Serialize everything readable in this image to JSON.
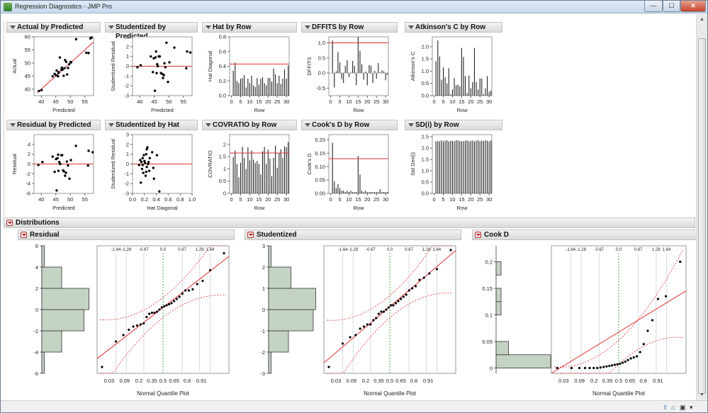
{
  "window": {
    "title": "Regression Diagnostics - JMP Pro",
    "minimize": "—",
    "maximize": "☐",
    "close": "✕"
  },
  "plots": [
    {
      "title": "Actual by Predicted",
      "ylabel": "Actual",
      "xlabel": "Predicted",
      "xt": [
        "40",
        "45",
        "50",
        "55"
      ],
      "yt": [
        "40",
        "45",
        "50",
        "55",
        "60"
      ]
    },
    {
      "title": "Studentized by Predicted",
      "ylabel": "Studentized Residual",
      "xlabel": "Predicted",
      "xt": [
        "40",
        "45",
        "50",
        "55"
      ],
      "yt": [
        "3",
        "2",
        "1",
        "0",
        "-1",
        "-2",
        "-3"
      ]
    },
    {
      "title": "Hat by Row",
      "ylabel": "Hat Diagonal",
      "xlabel": "Row",
      "xt": [
        "0",
        "5",
        "10",
        "15",
        "20",
        "25",
        "30"
      ],
      "yt": [
        "0.8",
        "0.6",
        "0.4",
        "0.2",
        "0.0"
      ]
    },
    {
      "title": "DFFITS by Row",
      "ylabel": "DFFITS",
      "xlabel": "Row",
      "xt": [
        "0",
        "5",
        "10",
        "15",
        "20",
        "25",
        "30"
      ],
      "yt": [
        "1.0",
        "0.5",
        "0.0",
        "-0.5"
      ]
    },
    {
      "title": "Atkinson's C by Row",
      "ylabel": "Atkinson's C",
      "xlabel": "Row",
      "xt": [
        "0",
        "5",
        "10",
        "15",
        "20",
        "25",
        "30"
      ],
      "yt": [
        "2.0",
        "1.5",
        "1.0",
        "0.5",
        "0.0"
      ]
    },
    {
      "title": "Residual by Predicted",
      "ylabel": "Residual",
      "xlabel": "Predicted",
      "xt": [
        "40",
        "45",
        "50",
        "55"
      ],
      "yt": [
        "4",
        "2",
        "0",
        "-2",
        "-4",
        "-6"
      ]
    },
    {
      "title": "Studentized by Hat",
      "ylabel": "Studentized Residual",
      "xlabel": "Hat Diagonal",
      "xt": [
        "0.0",
        "0.2",
        "0.4",
        "0.6",
        "0.8",
        "1.0"
      ],
      "yt": [
        "3",
        "2",
        "1",
        "0",
        "-1",
        "-2",
        "-3"
      ]
    },
    {
      "title": "COVRATIO by Row",
      "ylabel": "COVRATIO",
      "xlabel": "Row",
      "xt": [
        "0",
        "5",
        "10",
        "15",
        "20",
        "25",
        "30"
      ],
      "yt": [
        "2",
        "1.5",
        "1",
        "0.5",
        "0"
      ]
    },
    {
      "title": "Cook's D by Row",
      "ylabel": "Cook's D",
      "xlabel": "Row",
      "xt": [
        "0",
        "5",
        "10",
        "15",
        "20",
        "25",
        "30"
      ],
      "yt": [
        "0.20",
        "0.15",
        "0.10",
        "0.05",
        "0.00"
      ]
    },
    {
      "title": "SD(i) by Row",
      "ylabel": "Std Dev(i)",
      "xlabel": "Row",
      "xt": [
        "0",
        "5",
        "10",
        "15",
        "20",
        "25",
        "30"
      ],
      "yt": [
        "2.5",
        "2.0",
        "1.5",
        "1.0",
        "0.5",
        "0.0"
      ]
    }
  ],
  "distributions": {
    "title": "Distributions",
    "panels": [
      {
        "title": "Residual",
        "yt": [
          "6",
          "4",
          "2",
          "0",
          "-2",
          "-4",
          "-6"
        ]
      },
      {
        "title": "Studentized",
        "yt": [
          "3",
          "2",
          "1",
          "0",
          "-1",
          "-2",
          "-3"
        ]
      },
      {
        "title": "Cook D",
        "yt": [
          "0.2",
          "0.15",
          "0.1",
          "0.05",
          "0"
        ]
      }
    ],
    "top_quantiles": [
      "-1.64",
      "-1.28",
      "-0.67",
      "0.0",
      "0.67",
      "1.28",
      "1.64"
    ],
    "bottom_probs": [
      "0.03",
      "0.09",
      "0.2",
      "0.35",
      "0.5",
      "0.65",
      "0.8",
      "0.91"
    ],
    "qq_label": "Normal Quantile Plot"
  },
  "chart_data": [
    {
      "type": "scatter",
      "title": "Actual by Predicted",
      "xlabel": "Predicted",
      "ylabel": "Actual",
      "xlim": [
        37.5,
        58
      ],
      "ylim": [
        37.5,
        60
      ],
      "x": [
        39.2,
        40.1,
        43.9,
        44.6,
        45.1,
        45.3,
        45.8,
        45.9,
        46.0,
        46.4,
        46.9,
        47.1,
        47.3,
        47.7,
        48.0,
        48.2,
        48.6,
        48.9,
        49.2,
        49.6,
        50.1,
        50.3,
        52.0,
        55.5,
        56.3,
        56.9,
        57.3
      ],
      "y": [
        39.3,
        39.6,
        44.9,
        45.8,
        45.3,
        47.1,
        44.9,
        46.1,
        46.5,
        52.1,
        47.4,
        48.2,
        47.4,
        45.1,
        48.0,
        51.1,
        50.4,
        45.6,
        48.1,
        49.5,
        50.4,
        50.2,
        59.1,
        53.9,
        53.8,
        59.4,
        59.7
      ]
    },
    {
      "type": "scatter",
      "title": "Studentized by Predicted",
      "xlabel": "Predicted",
      "ylabel": "Studentized Residual",
      "xlim": [
        37.5,
        58
      ],
      "ylim": [
        -3,
        3
      ],
      "x": [
        39.2,
        40.3,
        43.8,
        44.5,
        44.8,
        45.2,
        45.4,
        45.6,
        45.8,
        46.0,
        46.2,
        46.5,
        46.9,
        47.3,
        47.8,
        48.0,
        48.3,
        48.5,
        48.8,
        49.2,
        49.7,
        50.2,
        51.9,
        56.0,
        56.3,
        57.4
      ],
      "y": [
        -0.1,
        0.1,
        1.0,
        -0.6,
        0.8,
        -2.5,
        0.9,
        1.5,
        -0.7,
        0.2,
        0.0,
        1.0,
        1.0,
        -0.7,
        -0.8,
        -1.2,
        -0.9,
        0.3,
        -0.1,
        2.4,
        -1.6,
        0.4,
        1.9,
        -0.2,
        1.5,
        1.4
      ]
    },
    {
      "type": "bar",
      "title": "Hat by Row",
      "xlabel": "Row",
      "ylabel": "Hat Diagonal",
      "ylim": [
        0,
        0.8
      ],
      "reference": 0.43,
      "values": [
        0.34,
        0.45,
        0.2,
        0.17,
        0.23,
        0.24,
        0.28,
        0.11,
        0.23,
        0.17,
        0.27,
        0.14,
        0.12,
        0.24,
        0.15,
        0.23,
        0.25,
        0.17,
        0.14,
        0.24,
        0.24,
        0.19,
        0.37,
        0.29,
        0.17,
        0.27,
        0.16,
        0.23,
        0.36,
        0.23,
        0.41
      ]
    },
    {
      "type": "bar",
      "title": "DFFITS by Row",
      "xlabel": "Row",
      "ylabel": "DFFITS",
      "ylim": [
        -0.75,
        1.2
      ],
      "reference": 1.0,
      "values": [
        1.08,
        -0.48,
        0.06,
        0.7,
        0.35,
        -0.2,
        -0.33,
        0.24,
        0.42,
        -0.14,
        0.02,
        0.4,
        0.24,
        -0.4,
        1.2,
        0.73,
        0.29,
        -0.22,
        0.05,
        -0.41,
        0.26,
        0.24,
        -0.33,
        0.07,
        -0.19,
        0.33,
        0.02,
        0.09,
        0.06,
        -0.24,
        -0.06
      ]
    },
    {
      "type": "bar",
      "title": "Atkinson's C by Row",
      "xlabel": "Row",
      "ylabel": "Atkinson's C",
      "ylim": [
        0,
        2.4
      ],
      "values": [
        1.4,
        2.25,
        1.6,
        0.65,
        1.15,
        0.75,
        0.5,
        1.12,
        0.05,
        0.25,
        0.72,
        0.42,
        0.45,
        0.38,
        1.95,
        1.58,
        0.8,
        0.1,
        0.82,
        0.3,
        0.55,
        1.95,
        0.55,
        0.25,
        0.7,
        0.7,
        0.05,
        0.3,
        0.8,
        0.15,
        0.2
      ]
    },
    {
      "type": "scatter",
      "title": "Residual by Predicted",
      "xlabel": "Predicted",
      "ylabel": "Residual",
      "xlim": [
        37.5,
        58
      ],
      "ylim": [
        -6,
        6
      ],
      "x": [
        39.0,
        40.4,
        43.9,
        44.6,
        45.1,
        45.3,
        45.6,
        45.8,
        45.9,
        46.2,
        46.5,
        46.9,
        47.2,
        47.5,
        47.8,
        48.2,
        48.5,
        48.8,
        49.2,
        49.7,
        50.2,
        51.9,
        56.1,
        56.3,
        57.7
      ],
      "y": [
        -0.2,
        0.4,
        1.5,
        -1.6,
        1.0,
        -5.4,
        1.2,
        1.9,
        -1.4,
        0.4,
        0.0,
        1.8,
        1.8,
        -1.3,
        -1.5,
        -2.4,
        -1.8,
        0.5,
        -0.3,
        -3.0,
        0.8,
        3.7,
        -0.3,
        2.7,
        2.4
      ]
    },
    {
      "type": "scatter",
      "title": "Studentized by Hat",
      "xlabel": "Hat Diagonal",
      "ylabel": "Studentized Residual",
      "xlim": [
        0,
        1.0
      ],
      "ylim": [
        -3,
        3
      ],
      "x": [
        0.11,
        0.13,
        0.14,
        0.15,
        0.16,
        0.17,
        0.17,
        0.18,
        0.19,
        0.2,
        0.21,
        0.22,
        0.23,
        0.23,
        0.24,
        0.24,
        0.25,
        0.26,
        0.27,
        0.28,
        0.29,
        0.33,
        0.35,
        0.36,
        0.41,
        0.45
      ],
      "y": [
        -0.1,
        0.4,
        -1.9,
        0.2,
        -0.5,
        -0.1,
        0.6,
        -0.9,
        0.9,
        0.3,
        0.1,
        -1.2,
        1.0,
        -0.8,
        1.5,
        -0.3,
        1.7,
        0.0,
        0.2,
        -0.7,
        0.6,
        1.2,
        -0.4,
        -1.5,
        0.9,
        -2.8
      ]
    },
    {
      "type": "bar",
      "title": "COVRATIO by Row",
      "xlabel": "Row",
      "ylabel": "COVRATIO",
      "ylim": [
        0,
        2.4
      ],
      "reference": 1.65,
      "values": [
        1.48,
        1.75,
        1.2,
        0.65,
        1.25,
        1.9,
        1.45,
        1.0,
        1.88,
        1.35,
        1.75,
        1.38,
        1.25,
        1.32,
        1.2,
        0.78,
        1.72,
        1.9,
        1.2,
        1.78,
        1.42,
        0.7,
        1.45,
        1.95,
        1.05,
        1.65,
        1.8,
        1.45,
        1.92,
        1.88,
        2.1
      ]
    },
    {
      "type": "bar",
      "title": "Cook's D by Row",
      "xlabel": "Row",
      "ylabel": "Cook's D",
      "ylim": [
        0,
        0.22
      ],
      "reference": 0.13,
      "values": [
        0.19,
        0.045,
        0.02,
        0.035,
        0.02,
        0.01,
        0.01,
        0.005,
        0.01,
        0.005,
        0.01,
        0.005,
        0.005,
        0.005,
        0.14,
        0.07,
        0.01,
        0.005,
        0.01,
        0.005,
        0.005,
        0.005,
        0.005,
        0.005,
        0.005,
        0.005,
        0.015,
        0.005,
        0.005,
        0.005,
        0.005
      ]
    },
    {
      "type": "bar",
      "title": "SD(i) by Row",
      "xlabel": "Row",
      "ylabel": "Std Dev(i)",
      "ylim": [
        0,
        2.6
      ],
      "values": [
        2.3,
        2.32,
        2.3,
        2.35,
        2.3,
        2.33,
        2.35,
        2.3,
        2.32,
        2.33,
        2.3,
        2.35,
        2.34,
        2.32,
        2.3,
        2.31,
        2.33,
        2.35,
        2.3,
        2.32,
        2.34,
        2.3,
        2.33,
        2.35,
        2.3,
        2.34,
        2.32,
        2.35,
        2.33,
        2.3,
        2.34
      ]
    }
  ],
  "dist_data": [
    {
      "title": "Residual",
      "ylim": [
        -6,
        6
      ],
      "bins": [
        [
          -6,
          -4,
          0.5
        ],
        [
          -4,
          -2,
          4
        ],
        [
          -2,
          0,
          8.5
        ],
        [
          0,
          2,
          9.5
        ],
        [
          2,
          4,
          4
        ],
        [
          4,
          6,
          0.5
        ]
      ],
      "q": [
        -5.4,
        -3.0,
        -2.4,
        -1.9,
        -1.6,
        -1.5,
        -1.4,
        -1.3,
        -0.7,
        -0.4,
        -0.3,
        -0.3,
        -0.2,
        0.0,
        0.2,
        0.3,
        0.4,
        0.5,
        0.6,
        0.8,
        1.0,
        1.2,
        1.5,
        1.8,
        1.8,
        1.9,
        2.4,
        2.7,
        3.7,
        5.3
      ]
    },
    {
      "title": "Studentized",
      "ylim": [
        -3,
        3
      ],
      "bins": [
        [
          -3,
          -2,
          0.5
        ],
        [
          -2,
          -1,
          4
        ],
        [
          -1,
          0,
          9
        ],
        [
          0,
          1,
          9.5
        ],
        [
          1,
          2,
          4.5
        ],
        [
          2,
          3,
          0.5
        ]
      ],
      "q": [
        -2.7,
        -1.6,
        -1.3,
        -1.2,
        -0.9,
        -0.8,
        -0.7,
        -0.7,
        -0.5,
        -0.4,
        -0.2,
        -0.1,
        -0.1,
        0.0,
        0.1,
        0.2,
        0.2,
        0.3,
        0.4,
        0.5,
        0.6,
        0.7,
        0.9,
        1.0,
        1.1,
        1.4,
        1.5,
        1.7,
        1.9,
        2.8
      ]
    },
    {
      "title": "Cook D",
      "ylim": [
        -0.01,
        0.23
      ],
      "bins": [
        [
          0,
          0.025,
          11
        ],
        [
          0.025,
          0.05,
          2.5
        ],
        [
          0.1,
          0.125,
          1
        ],
        [
          0.125,
          0.15,
          1
        ],
        [
          0.175,
          0.2,
          1
        ]
      ],
      "q": [
        0.0,
        0.0,
        0.0,
        0.0,
        0.0,
        0.0,
        0.0,
        0.001,
        0.002,
        0.003,
        0.004,
        0.005,
        0.006,
        0.007,
        0.008,
        0.01,
        0.012,
        0.015,
        0.018,
        0.02,
        0.022,
        0.03,
        0.045,
        0.07,
        0.09,
        0.13,
        0.135,
        0.2
      ]
    }
  ]
}
